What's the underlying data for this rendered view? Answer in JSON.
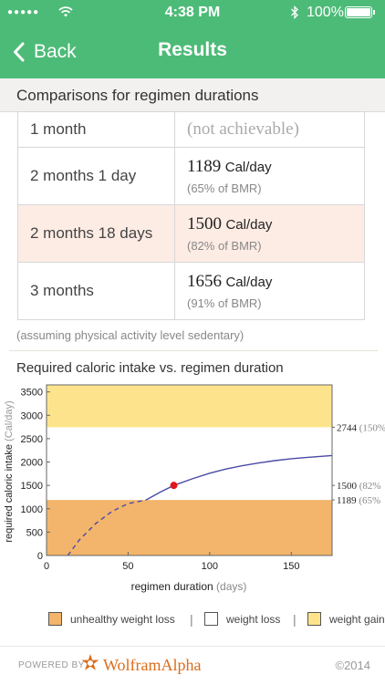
{
  "status_bar": {
    "time": "4:38 PM",
    "battery": "100%",
    "signal_icon": "signal-dots-icon",
    "wifi_icon": "wifi-icon",
    "bluetooth_icon": "bluetooth-icon"
  },
  "nav": {
    "back_label": "Back",
    "title": "Results"
  },
  "section": {
    "title": "Comparisons for regimen durations"
  },
  "table": {
    "rows": [
      {
        "duration": "1 month",
        "calories": "",
        "unit": "",
        "percent": "",
        "note": "(not achievable)"
      },
      {
        "duration": "2 months 1 day",
        "calories": "1189",
        "unit": "Cal/day",
        "percent": "(65% of BMR)"
      },
      {
        "duration": "2 months 18 days",
        "calories": "1500",
        "unit": "Cal/day",
        "percent": "(82% of BMR)",
        "highlighted": true
      },
      {
        "duration": "3 months",
        "calories": "1656",
        "unit": "Cal/day",
        "percent": "(91% of BMR)"
      }
    ]
  },
  "assumption_note": "(assuming physical activity level sedentary)",
  "chart_title": "Required caloric intake vs. regimen duration",
  "chart_data": {
    "type": "line",
    "title": "Required caloric intake vs. regimen duration",
    "xlabel": "regimen duration",
    "xlabel_unit": "(days)",
    "ylabel": "required caloric intake",
    "ylabel_unit": "(Cal/day)",
    "xlim": [
      0,
      175
    ],
    "ylim": [
      0,
      3650
    ],
    "x_ticks": [
      0,
      50,
      100,
      150
    ],
    "y_ticks": [
      0,
      500,
      1000,
      1500,
      2000,
      2500,
      3000,
      3500
    ],
    "bands": [
      {
        "name": "unhealthy weight loss",
        "from": 0,
        "to": 1189,
        "color": "#f2b56b"
      },
      {
        "name": "weight loss",
        "from": 1189,
        "to": 2744,
        "color": "#ffffff"
      },
      {
        "name": "weight gain",
        "from": 2744,
        "to": 3650,
        "color": "#fde48c"
      }
    ],
    "curve": {
      "x": [
        13,
        20,
        30,
        40,
        50,
        61,
        70,
        78,
        90,
        100,
        110,
        120,
        130,
        140,
        150,
        160,
        175
      ],
      "y": [
        0,
        330,
        680,
        940,
        1110,
        1189,
        1360,
        1500,
        1650,
        1760,
        1850,
        1920,
        1980,
        2030,
        2070,
        2100,
        2140
      ],
      "dashed_until_x": 61,
      "color": "#4a4aa8"
    },
    "marker": {
      "x": 78,
      "y": 1500,
      "color": "#e0161b"
    },
    "right_labels": [
      {
        "y": 2744,
        "value": "2744",
        "pct": "(150%"
      },
      {
        "y": 1500,
        "value": "1500",
        "pct": "(82%"
      },
      {
        "y": 1189,
        "value": "1189",
        "pct": "(65%"
      }
    ],
    "grid": false
  },
  "legend": [
    {
      "label": "unhealthy weight loss",
      "color": "#f2b56b"
    },
    {
      "label": "weight loss",
      "color": "#ffffff"
    },
    {
      "label": "weight gain",
      "color": "#fde48c"
    }
  ],
  "legend_separator": "|",
  "footer": {
    "powered_by": "POWERED BY",
    "brand": "WolframAlpha",
    "copyright": "©2014",
    "brand_color": "#dd6c1b"
  },
  "colors": {
    "accent": "#4dbb78",
    "highlight_row": "#fdece4"
  }
}
